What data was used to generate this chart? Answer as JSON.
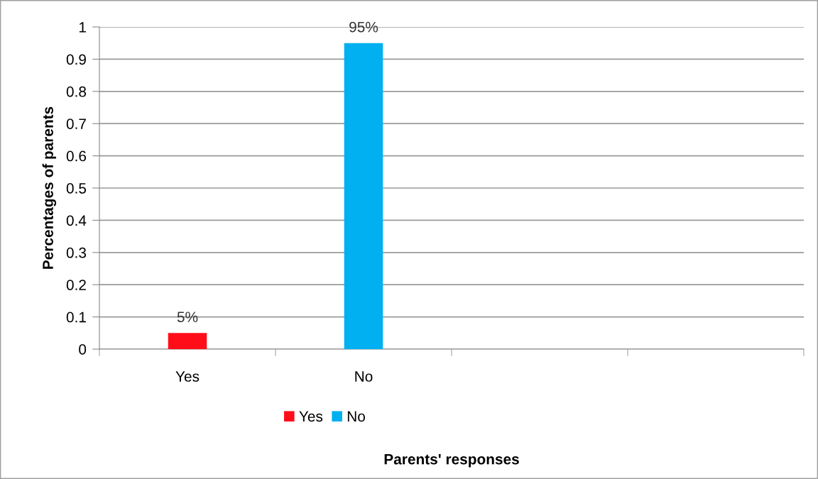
{
  "chart_data": {
    "type": "bar",
    "xlabel": "Parents' responses",
    "ylabel": "Percentages of parents",
    "categories": [
      "Yes",
      "No",
      null,
      null
    ],
    "series": [
      {
        "name": "Yes",
        "color": "#ff0d19",
        "values": [
          0.05,
          null,
          null,
          null
        ],
        "value_labels": [
          "5%",
          null,
          null,
          null
        ]
      },
      {
        "name": "No",
        "color": "#00b0f0",
        "values": [
          null,
          0.95,
          null,
          null
        ],
        "value_labels": [
          null,
          "95%",
          null,
          null
        ]
      }
    ],
    "ylim": [
      0,
      1
    ],
    "yticks": [
      0,
      0.1,
      0.2,
      0.3,
      0.4,
      0.5,
      0.6,
      0.7,
      0.8,
      0.9,
      1
    ],
    "grid": "y",
    "legend": "bottom"
  }
}
